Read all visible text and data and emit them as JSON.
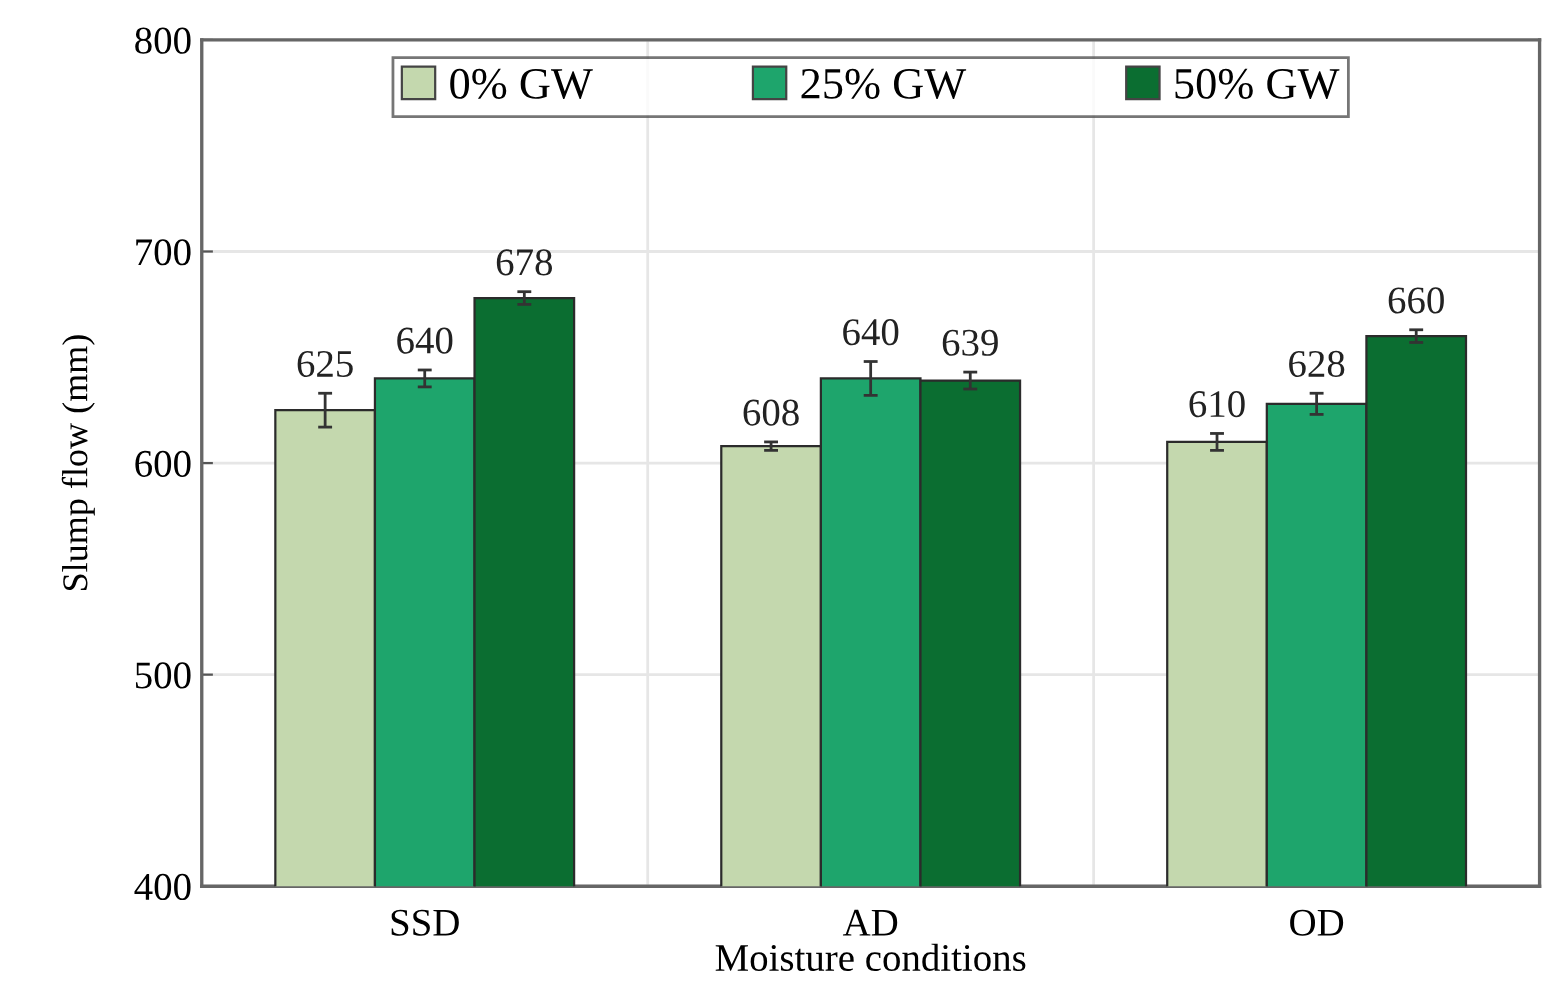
{
  "chart_data": {
    "type": "bar",
    "xlabel": "Moisture conditions",
    "ylabel": "Slump flow (mm)",
    "categories": [
      "SSD",
      "AD",
      "OD"
    ],
    "series": [
      {
        "name": "0% GW",
        "color": "#c4d8ae",
        "values": [
          625,
          608,
          610
        ],
        "errors": [
          8,
          2,
          4
        ]
      },
      {
        "name": "25% GW",
        "color": "#1ea56c",
        "values": [
          640,
          640,
          628
        ],
        "errors": [
          4,
          8,
          5
        ]
      },
      {
        "name": "50% GW",
        "color": "#0b6e31",
        "values": [
          678,
          639,
          660
        ],
        "errors": [
          3,
          4,
          3
        ]
      }
    ],
    "ylim": [
      400,
      800
    ],
    "yticks": [
      400,
      500,
      600,
      700,
      800
    ],
    "grid": true,
    "legend": "top",
    "data_labels": true
  }
}
